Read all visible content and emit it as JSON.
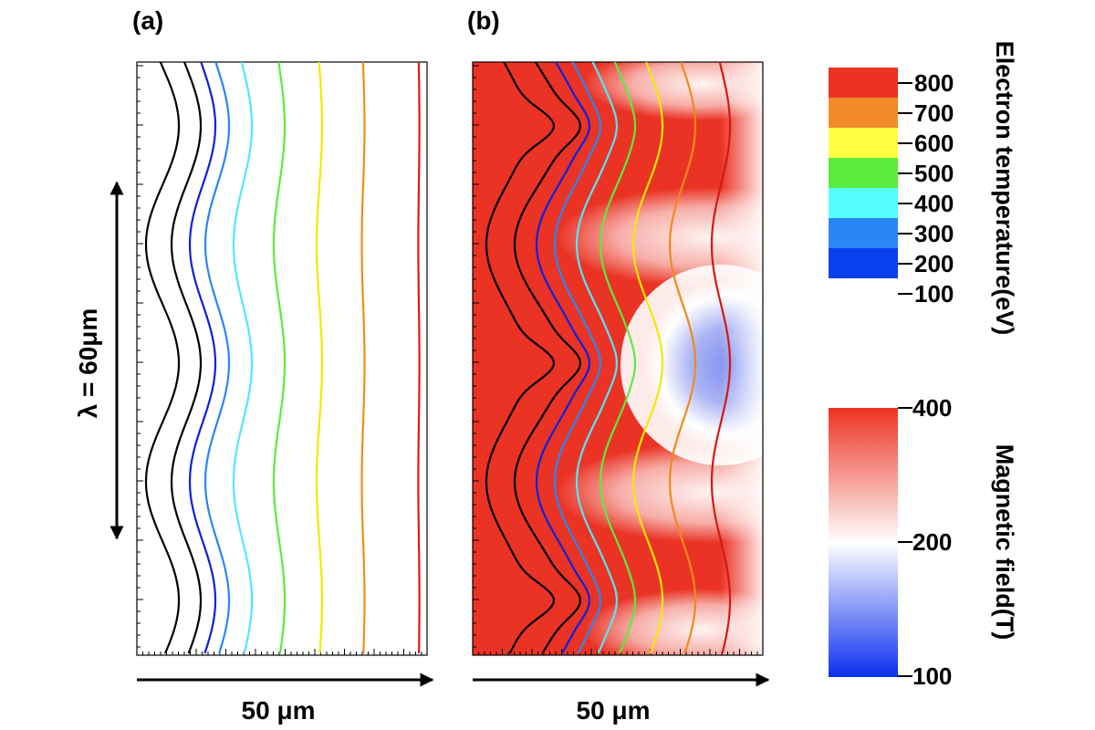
{
  "panels": {
    "a": {
      "label": "(a)",
      "xlabel": "50 μm",
      "side_label": "λ = 60μm"
    },
    "b": {
      "label": "(b)",
      "xlabel": "50 μm"
    }
  },
  "colorbar_temperature": {
    "title": "Electron temperature(eV)",
    "levels": [
      {
        "label": "800",
        "color": "#ec3322"
      },
      {
        "label": "700",
        "color": "#f28a2a"
      },
      {
        "label": "600",
        "color": "#ffff44"
      },
      {
        "label": "500",
        "color": "#5aec3e"
      },
      {
        "label": "400",
        "color": "#5aec3e"
      },
      {
        "label": "300",
        "color": "#55ffff"
      },
      {
        "label": "200",
        "color": "#2a86f2"
      },
      {
        "label": "100",
        "color": "#0b40ef"
      }
    ],
    "bands": [
      "#ec3322",
      "#f28a2a",
      "#ffff44",
      "#5aec3e",
      "#55ffff",
      "#2a86f2",
      "#0b40ef"
    ]
  },
  "colorbar_field": {
    "title": "Magnetic field(T)",
    "ticks": [
      "400",
      "200",
      "100"
    ],
    "colors": {
      "high": "#ec3322",
      "mid": "#ffffff",
      "low": "#0b2ff0"
    }
  },
  "chart_data": [
    {
      "type": "contour",
      "panel": "(a)",
      "xlabel": "50 μm",
      "annotation": "λ = 60μm",
      "contour_levels_eV": [
        100,
        200,
        300,
        400,
        500,
        600,
        700,
        800
      ],
      "contour_colors": [
        "#000000",
        "#000000",
        "#0b22d8",
        "#2a86f2",
        "#55e4ff",
        "#5aec3e",
        "#3fd12a",
        "#f5e800",
        "#f08a1c",
        "#e01b10"
      ]
    },
    {
      "type": "contour+heatmap",
      "panel": "(b)",
      "xlabel": "50 μm",
      "heatmap": "Magnetic field(T)",
      "heatmap_range": [
        100,
        400
      ],
      "contour_levels_eV": [
        100,
        200,
        300,
        400,
        500,
        600,
        700,
        800
      ],
      "contour_colors": [
        "#000000",
        "#000000",
        "#0b22d8",
        "#2a86f2",
        "#55e4ff",
        "#5aec3e",
        "#3fd12a",
        "#f5e800",
        "#f08a1c",
        "#e01b10"
      ]
    }
  ]
}
